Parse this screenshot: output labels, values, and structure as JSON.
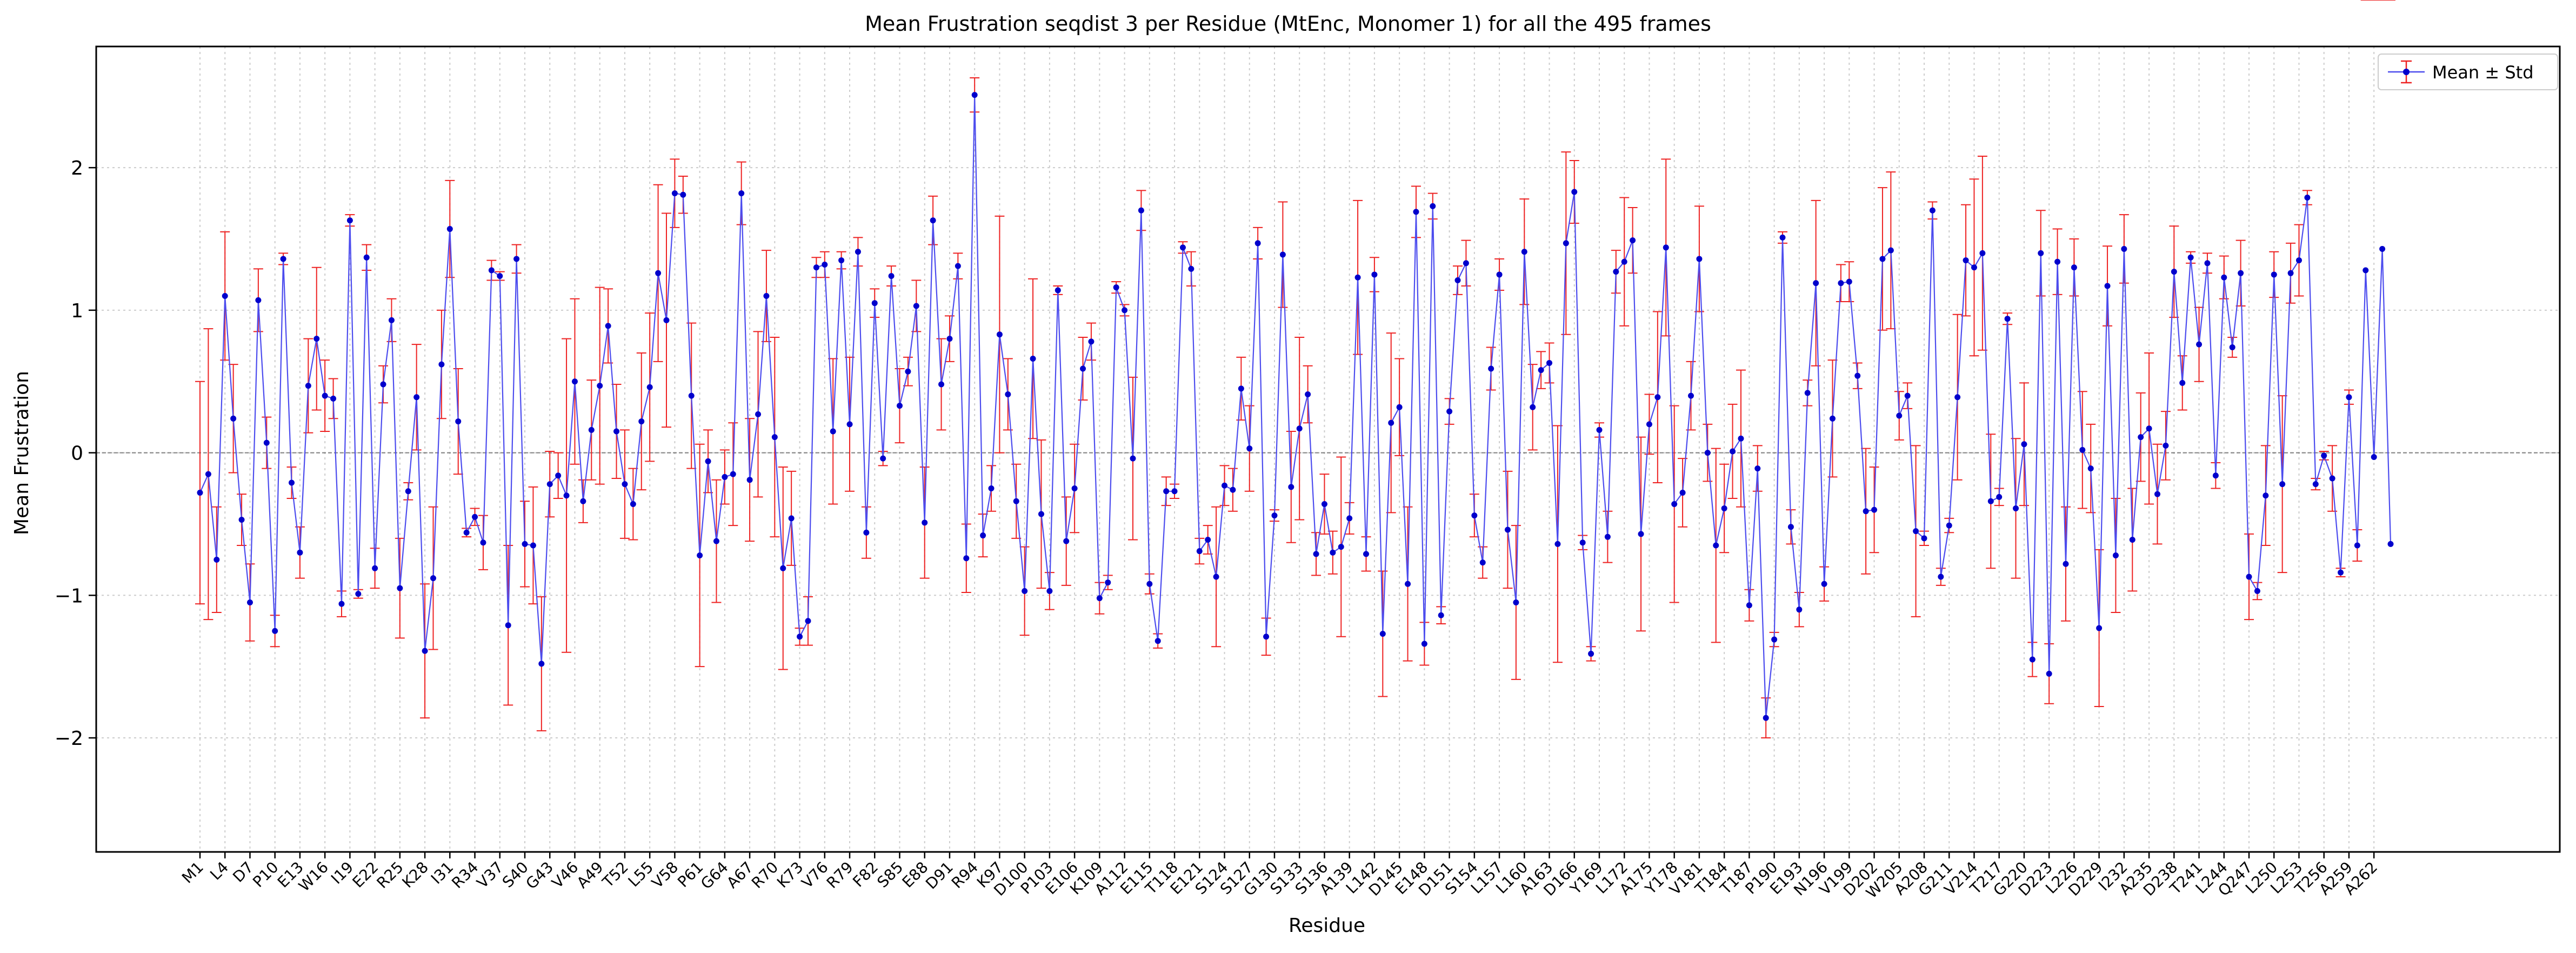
{
  "chart_data": {
    "type": "line",
    "title": "Mean Frustration seqdist 3 per Residue (MtEnc, Monomer 1) for all the 495 frames",
    "xlabel": "Residue",
    "ylabel": "Mean Frustration",
    "ylim": [
      -2.8,
      2.85
    ],
    "yticks": [
      {
        "value": -2,
        "label": "−2"
      },
      {
        "value": -1,
        "label": "−1"
      },
      {
        "value": 0,
        "label": "0"
      },
      {
        "value": 1,
        "label": "1"
      },
      {
        "value": 2,
        "label": "2"
      }
    ],
    "grid": true,
    "reference_line": 0,
    "legend": {
      "placement": "top-right",
      "label": "Mean ± Std"
    },
    "colors": {
      "line": "#4c4cee",
      "marker": "#0000cc",
      "errorbar": "#ee2222",
      "grid": "#cccccc",
      "zero_line": "#808080"
    },
    "tick_labels": [
      "M1",
      "L4",
      "D7",
      "P10",
      "E13",
      "W16",
      "I19",
      "E22",
      "R25",
      "K28",
      "I31",
      "R34",
      "V37",
      "S40",
      "G43",
      "V46",
      "A49",
      "T52",
      "L55",
      "V58",
      "P61",
      "G64",
      "A67",
      "R70",
      "K73",
      "V76",
      "R79",
      "F82",
      "S85",
      "E88",
      "D91",
      "R94",
      "K97",
      "D100",
      "P103",
      "E106",
      "K109",
      "A112",
      "E115",
      "T118",
      "E121",
      "S124",
      "S127",
      "G130",
      "S133",
      "S136",
      "A139",
      "L142",
      "D145",
      "E148",
      "D151",
      "S154",
      "L157",
      "L160",
      "A163",
      "D166",
      "Y169",
      "L172",
      "A175",
      "Y178",
      "V181",
      "T184",
      "T187",
      "P190",
      "E193",
      "N196",
      "V199",
      "D202",
      "W205",
      "A208",
      "G211",
      "V214",
      "T217",
      "G220",
      "D223",
      "L226",
      "D229",
      "I232",
      "A235",
      "D238",
      "T241",
      "L244",
      "Q247",
      "L250",
      "L253",
      "T256",
      "A259",
      "A262"
    ],
    "x": [
      1,
      2,
      3,
      4,
      5,
      6,
      7,
      8,
      9,
      10,
      11,
      12,
      13,
      14,
      15,
      16,
      17,
      18,
      19,
      20,
      21,
      22,
      23,
      24,
      25,
      26,
      27,
      28,
      29,
      30,
      31,
      32,
      33,
      34,
      35,
      36,
      37,
      38,
      39,
      40,
      41,
      42,
      43,
      44,
      45,
      46,
      47,
      48,
      49,
      50,
      51,
      52,
      53,
      54,
      55,
      56,
      57,
      58,
      59,
      60,
      61,
      62,
      63,
      64,
      65,
      66,
      67,
      68,
      69,
      70,
      71,
      72,
      73,
      74,
      75,
      76,
      77,
      78,
      79,
      80,
      81,
      82,
      83,
      84,
      85,
      86,
      87,
      88,
      89,
      90,
      91,
      92,
      93,
      94,
      95,
      96,
      97,
      98,
      99,
      100,
      101,
      102,
      103,
      104,
      105,
      106,
      107,
      108,
      109,
      110,
      111,
      112,
      113,
      114,
      115,
      116,
      117,
      118,
      119,
      120,
      121,
      122,
      123,
      124,
      125,
      126,
      127,
      128,
      129,
      130,
      131,
      132,
      133,
      134,
      135,
      136,
      137,
      138,
      139,
      140,
      141,
      142,
      143,
      144,
      145,
      146,
      147,
      148,
      149,
      150,
      151,
      152,
      153,
      154,
      155,
      156,
      157,
      158,
      159,
      160,
      161,
      162,
      163,
      164,
      165,
      166,
      167,
      168,
      169,
      170,
      171,
      172,
      173,
      174,
      175,
      176,
      177,
      178,
      179,
      180,
      181,
      182,
      183,
      184,
      185,
      186,
      187,
      188,
      189,
      190,
      191,
      192,
      193,
      194,
      195,
      196,
      197,
      198,
      199,
      200,
      201,
      202,
      203,
      204,
      205,
      206,
      207,
      208,
      209,
      210,
      211,
      212,
      213,
      214,
      215,
      216,
      217,
      218,
      219,
      220,
      221,
      222,
      223,
      224,
      225,
      226,
      227,
      228,
      229,
      230,
      231,
      232,
      233,
      234,
      235,
      236,
      237,
      238,
      239,
      240,
      241,
      242,
      243,
      244,
      245,
      246,
      247,
      248,
      249,
      250,
      251,
      252,
      253,
      254,
      255,
      256,
      257,
      258,
      259,
      260,
      261,
      262,
      263,
      264
    ],
    "series": [
      {
        "name": "Mean ± Std",
        "mean": [
          -0.28,
          -0.15,
          -0.75,
          1.1,
          0.24,
          -0.47,
          -1.05,
          1.07,
          0.07,
          -1.25,
          1.36,
          -0.21,
          -0.7,
          0.47,
          0.8,
          0.4,
          0.38,
          -1.06,
          1.63,
          -0.99,
          1.37,
          -0.81,
          0.48,
          0.93,
          -0.95,
          -0.27,
          0.39,
          -1.39,
          -0.88,
          0.62,
          1.57,
          0.22,
          -0.56,
          -0.45,
          -0.63,
          1.28,
          1.24,
          -1.21,
          1.36,
          -0.64,
          -0.65,
          -1.48,
          -0.22,
          -0.16,
          -0.3,
          0.5,
          -0.34,
          0.16,
          0.47,
          0.89,
          0.15,
          -0.22,
          -0.36,
          0.22,
          0.46,
          1.26,
          0.93,
          1.82,
          1.81,
          0.4,
          -0.72,
          -0.06,
          -0.62,
          -0.17,
          -0.15,
          1.82,
          -0.19,
          0.27,
          1.1,
          0.11,
          -0.81,
          -0.46,
          -1.29,
          -1.18,
          1.3,
          1.32,
          0.15,
          1.35,
          0.2,
          1.41,
          -0.56,
          1.05,
          -0.04,
          1.24,
          0.33,
          0.57,
          1.03,
          -0.49,
          1.63,
          0.48,
          0.8,
          1.31,
          -0.74,
          2.51,
          -0.58,
          -0.25,
          0.83,
          0.41,
          -0.34,
          -0.97,
          0.66,
          -0.43,
          -0.97,
          1.14,
          -0.62,
          -0.25,
          0.59,
          0.78,
          -1.02,
          -0.91,
          1.16,
          1.0,
          -0.04,
          1.7,
          -0.92,
          -1.32,
          -0.27,
          -0.27,
          1.44,
          1.29,
          -0.69,
          -0.61,
          -0.87,
          -0.23,
          -0.26,
          0.45,
          0.03,
          1.47,
          -1.29,
          -0.44,
          1.39,
          -0.24,
          0.17,
          0.41,
          -0.71,
          -0.36,
          -0.7,
          -0.66,
          -0.46,
          1.23,
          -0.71,
          1.25,
          -1.27,
          0.21,
          0.32,
          -0.92,
          1.69,
          -1.34,
          1.73,
          -1.14,
          0.29,
          1.21,
          1.33,
          -0.44,
          -0.77,
          0.59,
          1.25,
          -0.54,
          -1.05,
          1.41,
          0.32,
          0.58,
          0.63,
          -0.64,
          1.47,
          1.83,
          -0.63,
          -1.41,
          0.16,
          -0.59,
          1.27,
          1.34,
          1.49,
          -0.57,
          0.2,
          0.39,
          1.44,
          -0.36,
          -0.28,
          0.4,
          1.36,
          0.0,
          -0.65,
          -0.39,
          0.01,
          0.1,
          -1.07,
          -0.11,
          -1.86,
          -1.31,
          1.51,
          -0.52,
          -1.1,
          0.42,
          1.19,
          -0.92,
          0.24,
          1.19,
          1.2,
          0.54,
          -0.41,
          -0.4,
          1.36,
          1.42,
          0.26,
          0.4,
          -0.55,
          -0.6,
          1.7,
          -0.87,
          -0.51,
          0.39,
          1.35,
          1.3,
          1.4,
          -0.34,
          -0.31,
          0.94,
          -0.39,
          0.06,
          -1.45,
          1.4,
          -1.55,
          1.34,
          -0.78,
          1.3,
          0.02,
          -0.11,
          -1.23,
          1.17,
          -0.72,
          1.43,
          -0.61,
          0.11,
          0.17,
          -0.29,
          0.05,
          1.27,
          0.49,
          1.37,
          0.76,
          1.33,
          -0.16,
          1.23,
          0.74,
          1.26,
          -0.87,
          -0.97,
          -0.3,
          1.25,
          -0.22,
          1.26,
          1.35,
          1.79,
          -0.22,
          -0.02,
          -0.18,
          -0.84,
          0.39,
          -0.65,
          1.28,
          -0.03,
          1.43,
          -0.64
        ],
        "std": [
          0.78,
          1.02,
          0.37,
          0.45,
          0.38,
          0.18,
          0.27,
          0.22,
          0.18,
          0.11,
          0.04,
          0.11,
          0.18,
          0.33,
          0.5,
          0.25,
          0.14,
          0.09,
          0.04,
          0.03,
          0.09,
          0.14,
          0.13,
          0.15,
          0.35,
          0.06,
          0.37,
          0.47,
          0.5,
          0.38,
          0.34,
          0.37,
          0.03,
          0.06,
          0.19,
          0.07,
          0.03,
          0.56,
          0.1,
          0.3,
          0.41,
          0.47,
          0.23,
          0.16,
          1.1,
          0.58,
          0.15,
          0.35,
          0.69,
          0.26,
          0.33,
          0.38,
          0.25,
          0.48,
          0.52,
          0.62,
          0.75,
          0.24,
          0.13,
          0.51,
          0.78,
          0.22,
          0.43,
          0.19,
          0.36,
          0.22,
          0.43,
          0.58,
          0.32,
          0.7,
          0.71,
          0.33,
          0.06,
          0.17,
          0.07,
          0.09,
          0.51,
          0.06,
          0.47,
          0.1,
          0.18,
          0.1,
          0.05,
          0.07,
          0.26,
          0.1,
          0.18,
          0.39,
          0.17,
          0.32,
          0.16,
          0.09,
          0.24,
          0.12,
          0.15,
          0.16,
          0.83,
          0.25,
          0.26,
          0.31,
          0.56,
          0.52,
          0.13,
          0.03,
          0.31,
          0.31,
          0.22,
          0.13,
          0.11,
          0.05,
          0.04,
          0.04,
          0.57,
          0.14,
          0.07,
          0.05,
          0.1,
          0.05,
          0.04,
          0.12,
          0.09,
          0.1,
          0.49,
          0.14,
          0.15,
          0.22,
          0.3,
          0.11,
          0.13,
          0.04,
          0.37,
          0.39,
          0.64,
          0.2,
          0.15,
          0.21,
          0.15,
          0.63,
          0.11,
          0.54,
          0.12,
          0.12,
          0.44,
          0.63,
          0.34,
          0.54,
          0.18,
          0.15,
          0.09,
          0.06,
          0.09,
          0.1,
          0.16,
          0.15,
          0.11,
          0.15,
          0.11,
          0.41,
          0.54,
          0.37,
          0.3,
          0.13,
          0.14,
          0.83,
          0.64,
          0.22,
          0.05,
          0.05,
          0.05,
          0.18,
          0.15,
          0.45,
          0.23,
          0.68,
          0.21,
          0.6,
          0.62,
          0.69,
          0.24,
          0.24,
          0.37,
          0.2,
          0.68,
          0.31,
          0.33,
          0.48,
          0.11,
          0.16,
          0.14,
          0.05,
          0.04,
          0.12,
          0.12,
          0.09,
          0.58,
          0.12,
          0.41,
          0.13,
          0.14,
          0.09,
          0.44,
          0.3,
          0.5,
          0.55,
          0.17,
          0.09,
          0.6,
          0.05,
          0.06,
          0.06,
          0.05,
          0.58,
          0.39,
          0.62,
          0.68,
          0.47,
          0.06,
          0.04,
          0.49,
          0.43,
          0.12,
          0.3,
          0.21,
          0.23,
          0.4,
          0.2,
          0.41,
          0.31,
          0.55,
          0.28,
          0.4,
          0.24,
          0.36,
          0.31,
          0.53,
          0.35,
          0.24,
          0.32,
          0.19,
          0.04,
          0.26,
          0.07,
          0.09,
          0.15,
          0.07,
          0.23,
          0.3,
          0.06,
          0.35,
          0.16,
          0.62,
          0.21,
          0.25,
          0.05,
          0.04,
          0.03,
          0.23,
          0.03,
          0.05,
          0.11
        ]
      }
    ]
  }
}
